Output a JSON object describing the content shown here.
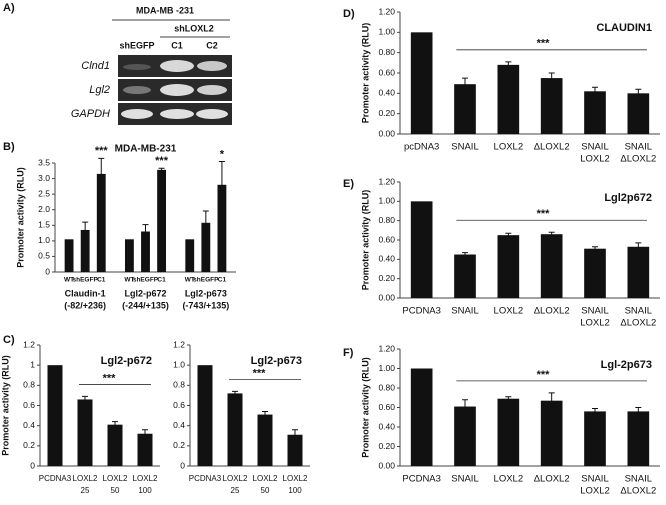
{
  "gel": {
    "panel": "A)",
    "cell_line": "MDA-MB -231",
    "group": "shLOXL2",
    "lanes": [
      "shEGFP",
      "C1",
      "C2"
    ],
    "genes": [
      "Clnd1",
      "Lgl2",
      "GAPDH"
    ]
  },
  "chart_data": [
    {
      "type": "grouped_bar",
      "panel": "B)",
      "title": "MDA-MB-231",
      "ylabel": "Promoter activity (RLU)",
      "color": "#111111",
      "ylim": [
        0,
        3.5
      ],
      "yticks": [
        0,
        0.5,
        {
          "value": 1,
          "label": "1.0"
        },
        1.5,
        {
          "value": 2,
          "label": "2.0"
        },
        2.5,
        {
          "value": 3,
          "label": "3.0"
        },
        3.5
      ],
      "groups": [
        {
          "label": [
            "Claudin-1",
            "(-82/+236)"
          ],
          "bars": [
            "WT",
            "shEGFP",
            "C1"
          ],
          "values": [
            1.05,
            1.35,
            3.15
          ],
          "errors": [
            0,
            0.25,
            0.5
          ],
          "annotation": "***"
        },
        {
          "label": [
            "Lgl2-p672",
            "(-244/+135)"
          ],
          "bars": [
            "WT",
            "shEGFP",
            "C1"
          ],
          "values": [
            1.05,
            1.3,
            3.28
          ],
          "errors": [
            0,
            0.22,
            0.05
          ],
          "annotation": "***"
        },
        {
          "label": [
            "Lgl2-p673",
            "(-743/+135)"
          ],
          "bars": [
            "WT",
            "shEGFP",
            "C1"
          ],
          "values": [
            1.05,
            1.58,
            2.8
          ],
          "errors": [
            0,
            0.38,
            0.75
          ],
          "annotation": "*"
        }
      ]
    },
    {
      "type": "bar",
      "panel": "C)",
      "title": "Lgl2-p672",
      "ylabel": "Promoter activity (RLU)",
      "color": "#111111",
      "ylim": [
        0,
        1.2
      ],
      "yticks": [
        0,
        0.2,
        0.4,
        0.6,
        0.8,
        1,
        1.2
      ],
      "categories": [
        [
          "PCDNA3"
        ],
        [
          "LOXL2",
          "25"
        ],
        [
          "LOXL2",
          "50"
        ],
        [
          "LOXL2",
          "100"
        ]
      ],
      "values": [
        1.0,
        0.66,
        0.41,
        0.32
      ],
      "errors": [
        0,
        0.03,
        0.03,
        0.04
      ],
      "annotation": "***"
    },
    {
      "type": "bar",
      "title": "Lgl2-p673",
      "color": "#111111",
      "ylim": [
        0,
        1.2
      ],
      "yticks": [
        0,
        0.2,
        0.4,
        0.6,
        0.8,
        {
          "value": 1,
          "label": "1.0"
        },
        1.2
      ],
      "categories": [
        [
          "PCDNA3"
        ],
        [
          "LOXL2",
          "25"
        ],
        [
          "LOXL2",
          "50"
        ],
        [
          "LOXL2",
          "100"
        ]
      ],
      "values": [
        1.0,
        0.72,
        0.51,
        0.31
      ],
      "errors": [
        0,
        0.02,
        0.03,
        0.05
      ],
      "annotation": "***"
    },
    {
      "type": "bar",
      "panel": "D)",
      "title": "CLAUDIN1",
      "ylabel": "Promoter activity (RLU)",
      "color": "#111111",
      "ylim": [
        0,
        1.2
      ],
      "yticks": [
        {
          "value": 0,
          "label": "0.00"
        },
        {
          "value": 0.2,
          "label": "0.20"
        },
        {
          "value": 0.4,
          "label": "0.40"
        },
        {
          "value": 0.6,
          "label": "0.60"
        },
        {
          "value": 0.8,
          "label": "0.80"
        },
        {
          "value": 1,
          "label": "1.00"
        },
        {
          "value": 1.2,
          "label": "1.20"
        }
      ],
      "categories": [
        [
          "pcDNA3"
        ],
        [
          "SNAIL"
        ],
        [
          "LOXL2"
        ],
        [
          "ΔLOXL2"
        ],
        [
          "SNAIL",
          "LOXL2"
        ],
        [
          "SNAIL",
          "ΔLOXL2"
        ]
      ],
      "values": [
        1.0,
        0.49,
        0.68,
        0.55,
        0.42,
        0.4
      ],
      "errors": [
        0,
        0.06,
        0.03,
        0.05,
        0.04,
        0.04
      ],
      "annotation": "***"
    },
    {
      "type": "bar",
      "panel": "E)",
      "title": "Lgl2p672",
      "ylabel": "Promoter activity (RLU)",
      "color": "#111111",
      "ylim": [
        0,
        1.2
      ],
      "yticks": [
        {
          "value": 0,
          "label": "0.00"
        },
        {
          "value": 0.2,
          "label": "0.20"
        },
        {
          "value": 0.4,
          "label": "0.40"
        },
        {
          "value": 0.6,
          "label": "0.60"
        },
        {
          "value": 0.8,
          "label": "0.80"
        },
        {
          "value": 1,
          "label": "1.00"
        },
        {
          "value": 1.2,
          "label": "1.20"
        }
      ],
      "categories": [
        [
          "PCDNA3"
        ],
        [
          "SNAIL"
        ],
        [
          "LOXL2"
        ],
        [
          "ΔLOXL2"
        ],
        [
          "SNAIL",
          "LOXL2"
        ],
        [
          "SNAIL",
          "ΔLOXL2"
        ]
      ],
      "values": [
        1.0,
        0.45,
        0.65,
        0.66,
        0.51,
        0.53
      ],
      "errors": [
        0,
        0.02,
        0.02,
        0.02,
        0.02,
        0.04
      ],
      "annotation": "***"
    },
    {
      "type": "bar",
      "panel": "F)",
      "title": "Lgl-2p673",
      "ylabel": "Promoter activity (RLU)",
      "color": "#111111",
      "ylim": [
        0,
        1.2
      ],
      "yticks": [
        {
          "value": 0,
          "label": "0.00"
        },
        {
          "value": 0.2,
          "label": "0.20"
        },
        {
          "value": 0.4,
          "label": "0.40"
        },
        {
          "value": 0.6,
          "label": "0.60"
        },
        {
          "value": 0.8,
          "label": "0.80"
        },
        {
          "value": 1,
          "label": "1.00"
        },
        {
          "value": 1.2,
          "label": "1.20"
        }
      ],
      "categories": [
        [
          "PCDNA3"
        ],
        [
          "SNAIL"
        ],
        [
          "LOXL2"
        ],
        [
          "ΔLOXL2"
        ],
        [
          "SNAIL",
          "LOXL2"
        ],
        [
          "SNAIL",
          "ΔLOXL2"
        ]
      ],
      "values": [
        1.0,
        0.61,
        0.69,
        0.67,
        0.56,
        0.56
      ],
      "errors": [
        0,
        0.07,
        0.02,
        0.08,
        0.03,
        0.04
      ],
      "annotation": "***"
    }
  ]
}
